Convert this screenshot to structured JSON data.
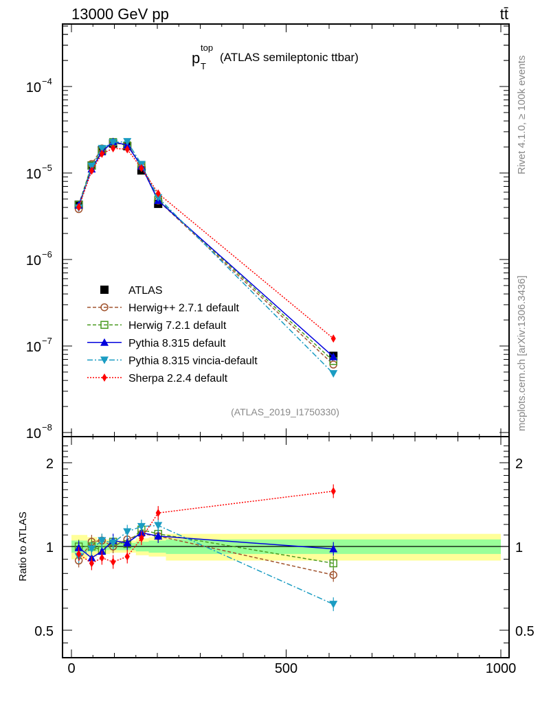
{
  "header": {
    "energy_label": "13000 GeV pp",
    "process_label": "tt̄"
  },
  "side_labels": {
    "rivet": "Rivet 4.1.0, ≥ 100k events",
    "source": "mcplots.cern.ch [arXiv:1306.3436]"
  },
  "chart_data": [
    {
      "type": "line",
      "title_main": "p",
      "title_sup": "top",
      "title_sub": "T",
      "title_rest": "(ATLAS semileptonic ttbar)",
      "annotation": "(ATLAS_2019_I1750330)",
      "xlabel": "",
      "ylabel": "",
      "xlim": [
        -20,
        1020
      ],
      "ylim": [
        1e-08,
        0.0005
      ],
      "yscale": "log",
      "ytick_labels": [
        {
          "value": 0.0001,
          "base": "10",
          "exp": "−4"
        },
        {
          "value": 1e-05,
          "base": "10",
          "exp": "−5"
        },
        {
          "value": 1e-06,
          "base": "10",
          "exp": "−6"
        },
        {
          "value": 1e-07,
          "base": "10",
          "exp": "−7"
        },
        {
          "value": 1e-08,
          "base": "10",
          "exp": "−8"
        }
      ],
      "legend_placement": "lower-left",
      "x": [
        17,
        47,
        71,
        97,
        130,
        163,
        202,
        610
      ],
      "series": [
        {
          "name": "ATLAS",
          "color": "#000000",
          "marker": "square",
          "line": "none",
          "values": [
            4.3e-06,
            1.22e-05,
            1.83e-05,
            2.19e-05,
            2.04e-05,
            1.07e-05,
            4.4e-06,
            7.7e-08
          ]
        },
        {
          "name": "Herwig++ 2.7.1 default",
          "color": "#a0522d",
          "marker": "open-circle",
          "line": "dashed",
          "values": [
            3.83e-06,
            1.27e-05,
            1.92e-05,
            2.19e-05,
            2.16e-05,
            1.19e-05,
            4.8e-06,
            6.1e-08
          ]
        },
        {
          "name": "Herwig 7.2.1 default",
          "color": "#4a9a20",
          "marker": "open-square",
          "line": "dashed",
          "values": [
            4.3e-06,
            1.22e-05,
            1.78e-05,
            2.28e-05,
            2.08e-05,
            1.23e-05,
            4.9e-06,
            6.7e-08
          ]
        },
        {
          "name": "Pythia 8.315 default",
          "color": "#0000dd",
          "marker": "triangle-up",
          "line": "solid",
          "values": [
            4.26e-06,
            1.11e-05,
            1.76e-05,
            2.3e-05,
            2.1e-05,
            1.2e-05,
            4.8e-06,
            7.5e-08
          ]
        },
        {
          "name": "Pythia 8.315 vincia-default",
          "color": "#1a9cc2",
          "marker": "triangle-down",
          "line": "dashdot",
          "values": [
            3.96e-06,
            1.2e-05,
            1.92e-05,
            2.26e-05,
            2.31e-05,
            1.26e-05,
            5.2e-06,
            4.8e-08
          ]
        },
        {
          "name": "Sherpa 2.2.4 default",
          "color": "#ff0000",
          "marker": "diamond",
          "line": "dotted",
          "values": [
            4.04e-06,
            1.06e-05,
            1.67e-05,
            1.93e-05,
            1.88e-05,
            1.14e-05,
            5.8e-06,
            1.22e-07
          ]
        }
      ]
    },
    {
      "type": "line",
      "ylabel": "Ratio to ATLAS",
      "xlim": [
        -20,
        1020
      ],
      "ylim": [
        0.4,
        2.4
      ],
      "yscale": "log",
      "ytick_labels": [
        {
          "value": 2,
          "label": "2"
        },
        {
          "value": 1,
          "label": "1"
        },
        {
          "value": 0.5,
          "label": "0.5"
        }
      ],
      "xtick_labels": [
        {
          "value": 0,
          "label": "0"
        },
        {
          "value": 500,
          "label": "500"
        },
        {
          "value": 1000,
          "label": "1000"
        }
      ],
      "x": [
        17,
        47,
        71,
        97,
        130,
        163,
        202,
        610
      ],
      "bin_edges": [
        0,
        37,
        60,
        90,
        120,
        150,
        180,
        220,
        1000
      ],
      "uncertainty_bands": {
        "inner_color": "#99ff99",
        "outer_color": "#ffff99",
        "inner_halfwidth": [
          0.05,
          0.04,
          0.03,
          0.03,
          0.03,
          0.04,
          0.05,
          0.06
        ],
        "outer_halfwidth": [
          0.1,
          0.08,
          0.06,
          0.05,
          0.05,
          0.07,
          0.08,
          0.11
        ]
      },
      "series": [
        {
          "name": "Herwig++ 2.7.1 default",
          "color": "#a0522d",
          "values": [
            0.89,
            1.04,
            1.05,
            1.0,
            1.06,
            1.11,
            1.09,
            0.79
          ]
        },
        {
          "name": "Herwig 7.2.1 default",
          "color": "#4a9a20",
          "values": [
            1.0,
            1.0,
            0.97,
            1.04,
            1.02,
            1.15,
            1.11,
            0.87
          ]
        },
        {
          "name": "Pythia 8.315 default",
          "color": "#0000dd",
          "values": [
            0.99,
            0.91,
            0.96,
            1.05,
            1.03,
            1.12,
            1.09,
            0.98
          ]
        },
        {
          "name": "Pythia 8.315 vincia-default",
          "color": "#1a9cc2",
          "values": [
            0.92,
            0.98,
            1.05,
            1.03,
            1.13,
            1.18,
            1.19,
            0.62
          ]
        },
        {
          "name": "Sherpa 2.2.4 default",
          "color": "#ff0000",
          "values": [
            0.94,
            0.87,
            0.91,
            0.88,
            0.92,
            1.07,
            1.32,
            1.58
          ]
        }
      ]
    }
  ]
}
